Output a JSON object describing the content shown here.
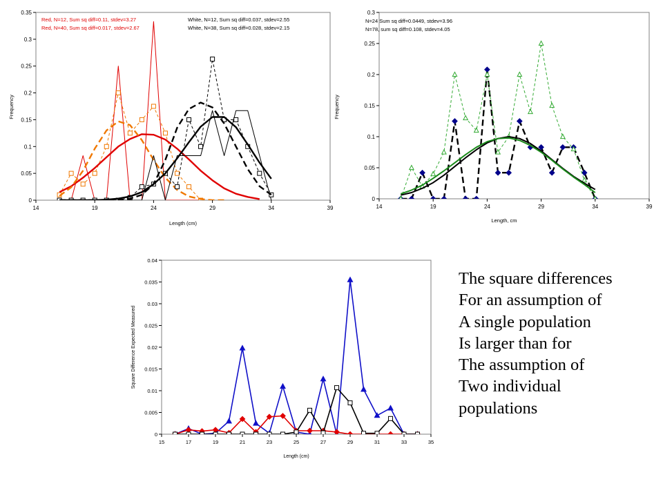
{
  "colors": {
    "red": "#e00000",
    "orange": "#f07800",
    "green": "#1a8a1a",
    "lightgreen": "#33aa33",
    "navy": "#00008b",
    "blue": "#1010c8",
    "black": "#000000"
  },
  "side_text": [
    "The square differences",
    "For an assumption of",
    "A single population",
    "Is larger than for",
    "The assumption of",
    "Two individual",
    "populations"
  ],
  "chart_data": [
    {
      "type": "line",
      "ylabel": "Frequency",
      "xlabel": "Length (cm)",
      "xlim": [
        14,
        39
      ],
      "ylim": [
        0,
        0.35
      ],
      "xticks": [
        14,
        19,
        24,
        29,
        34,
        39
      ],
      "yticks": [
        0,
        0.05,
        0.1,
        0.15,
        0.2,
        0.25,
        0.3,
        0.35
      ],
      "legend": [
        {
          "text": "Red, N=12, Sum sq diff=0.11, stdev=3.27",
          "color": "#e00000"
        },
        {
          "text": "Red, N=40, Sum sq diff=0.017, stdev=2.67",
          "color": "#e00000"
        },
        {
          "text": "White, N=12, Sum sq diff=0.037, stdev=2.55",
          "color": "#000000"
        },
        {
          "text": "White, N=38, Sum sq diff=0.028, stdev=2.15",
          "color": "#000000"
        }
      ],
      "series": [
        {
          "color": "#e00000",
          "width": 1,
          "x": [
            16,
            17,
            18,
            19,
            20,
            21,
            22,
            23,
            24,
            25,
            26,
            27,
            28
          ],
          "y": [
            0,
            0,
            0.083,
            0,
            0,
            0.25,
            0,
            0,
            0.333,
            0,
            0,
            0,
            0
          ]
        },
        {
          "color": "#f07800",
          "width": 1,
          "dash": "4,3",
          "marker": "square",
          "x": [
            16,
            17,
            18,
            19,
            20,
            21,
            22,
            23,
            24,
            25,
            26,
            27,
            28
          ],
          "y": [
            0.01,
            0.05,
            0.03,
            0.05,
            0.1,
            0.2,
            0.125,
            0.15,
            0.175,
            0.125,
            0.05,
            0.025,
            0
          ]
        },
        {
          "color": "#e00000",
          "width": 2.4,
          "x": [
            16,
            17,
            18,
            19,
            20,
            21,
            22,
            23,
            24,
            25,
            26,
            27,
            28,
            29,
            30,
            31,
            32,
            33
          ],
          "y": [
            0.015,
            0.026,
            0.042,
            0.06,
            0.08,
            0.1,
            0.114,
            0.123,
            0.122,
            0.113,
            0.096,
            0.076,
            0.055,
            0.037,
            0.022,
            0.012,
            0.006,
            0.002
          ]
        },
        {
          "color": "#f07800",
          "width": 2.4,
          "dash": "9,5",
          "x": [
            16,
            17,
            18,
            19,
            20,
            21,
            22,
            23,
            24,
            25,
            26,
            27,
            28,
            29,
            30
          ],
          "y": [
            0.008,
            0.024,
            0.055,
            0.096,
            0.13,
            0.147,
            0.14,
            0.112,
            0.075,
            0.042,
            0.019,
            0.007,
            0.002,
            0,
            0
          ]
        },
        {
          "color": "#000000",
          "width": 1,
          "x": [
            16,
            17,
            18,
            19,
            20,
            21,
            22,
            23,
            24,
            25,
            26,
            27,
            28,
            29,
            30,
            31,
            32,
            33,
            34
          ],
          "y": [
            0,
            0,
            0,
            0,
            0,
            0,
            0,
            0,
            0.083,
            0,
            0.083,
            0.083,
            0.083,
            0.167,
            0.083,
            0.167,
            0.167,
            0.083,
            0
          ]
        },
        {
          "color": "#000000",
          "width": 1,
          "dash": "4,3",
          "marker": "square",
          "x": [
            16,
            17,
            18,
            19,
            20,
            21,
            22,
            23,
            24,
            25,
            26,
            27,
            28,
            29,
            30,
            31,
            32,
            33,
            34
          ],
          "y": [
            0,
            0,
            0,
            0,
            0,
            0,
            0.005,
            0.025,
            0.03,
            0.05,
            0.025,
            0.15,
            0.1,
            0.263,
            0.15,
            0.15,
            0.1,
            0.05,
            0.01
          ]
        },
        {
          "color": "#000000",
          "width": 2.4,
          "x": [
            16,
            17,
            18,
            19,
            20,
            21,
            22,
            23,
            24,
            25,
            26,
            27,
            28,
            29,
            30,
            31,
            32,
            33,
            34
          ],
          "y": [
            0,
            0,
            0,
            0,
            0.001,
            0.003,
            0.007,
            0.015,
            0.03,
            0.05,
            0.078,
            0.108,
            0.137,
            0.155,
            0.155,
            0.136,
            0.104,
            0.07,
            0.04
          ]
        },
        {
          "color": "#000000",
          "width": 2.4,
          "dash": "9,5",
          "x": [
            16,
            17,
            18,
            19,
            20,
            21,
            22,
            23,
            24,
            25,
            26,
            27,
            28,
            29,
            30,
            31,
            32,
            33,
            34
          ],
          "y": [
            0,
            0,
            0,
            0,
            0,
            0,
            0.003,
            0.01,
            0.03,
            0.075,
            0.135,
            0.17,
            0.182,
            0.173,
            0.143,
            0.1,
            0.058,
            0.026,
            0.01
          ]
        }
      ]
    },
    {
      "type": "line",
      "ylabel": "Frequency",
      "xlabel": "Length, cm",
      "xlim": [
        14,
        39
      ],
      "ylim": [
        0,
        0.3
      ],
      "xticks": [
        14,
        19,
        24,
        29,
        34,
        39
      ],
      "yticks": [
        0,
        0.05,
        0.1,
        0.15,
        0.2,
        0.25,
        0.3
      ],
      "legend": [
        {
          "text": "N=24 Sum sq diff=0.0449, stdev=3.96",
          "color": "#000000"
        },
        {
          "text": "N=78, sum sq diff=0.108, stdev=4.05",
          "color": "#000000"
        }
      ],
      "series": [
        {
          "color": "#000000",
          "width": 2.4,
          "dash": "9,5",
          "marker": "diamond",
          "markerColor": "#00008b",
          "x": [
            16,
            17,
            18,
            19,
            20,
            21,
            22,
            23,
            24,
            25,
            26,
            27,
            28,
            29,
            30,
            31,
            32,
            33,
            34
          ],
          "y": [
            0,
            0,
            0.042,
            0,
            0,
            0.125,
            0,
            0,
            0.208,
            0.042,
            0.042,
            0.125,
            0.083,
            0.083,
            0.042,
            0.083,
            0.083,
            0.042,
            0
          ]
        },
        {
          "color": "#33aa33",
          "width": 1,
          "dash": "4,3",
          "marker": "triangle-open",
          "x": [
            16,
            17,
            18,
            19,
            20,
            21,
            22,
            23,
            24,
            25,
            26,
            27,
            28,
            29,
            30,
            31,
            32,
            33,
            34
          ],
          "y": [
            0,
            0.05,
            0.02,
            0.04,
            0.075,
            0.2,
            0.13,
            0.11,
            0.2,
            0.075,
            0.1,
            0.2,
            0.14,
            0.25,
            0.15,
            0.1,
            0.08,
            0.03,
            0
          ]
        },
        {
          "color": "#000000",
          "width": 2,
          "x": [
            16,
            17,
            18,
            19,
            20,
            21,
            22,
            23,
            24,
            25,
            26,
            27,
            28,
            29,
            30,
            31,
            32,
            33,
            34
          ],
          "y": [
            0.006,
            0.01,
            0.017,
            0.026,
            0.038,
            0.052,
            0.066,
            0.079,
            0.09,
            0.097,
            0.1,
            0.097,
            0.089,
            0.077,
            0.063,
            0.049,
            0.036,
            0.025,
            0.015
          ]
        },
        {
          "color": "#1a8a1a",
          "width": 2,
          "x": [
            16,
            17,
            18,
            19,
            20,
            21,
            22,
            23,
            24,
            25,
            26,
            27,
            28,
            29,
            30,
            31,
            32,
            33,
            34
          ],
          "y": [
            0.008,
            0.014,
            0.022,
            0.033,
            0.045,
            0.058,
            0.071,
            0.083,
            0.092,
            0.097,
            0.098,
            0.094,
            0.086,
            0.075,
            0.062,
            0.048,
            0.035,
            0.023,
            0.01
          ]
        }
      ]
    },
    {
      "type": "line",
      "ylabel": "Square Difference Expected Measured",
      "xlabel": "Length (cm)",
      "xlim": [
        15,
        35
      ],
      "ylim": [
        0,
        0.04
      ],
      "xticks": [
        15,
        17,
        19,
        21,
        23,
        25,
        27,
        29,
        31,
        33,
        35
      ],
      "yticks": [
        0,
        0.005,
        0.01,
        0.015,
        0.02,
        0.025,
        0.03,
        0.035,
        0.04
      ],
      "series": [
        {
          "color": "#1010c8",
          "width": 1.6,
          "marker": "triangle",
          "x": [
            16,
            17,
            18,
            19,
            20,
            21,
            22,
            23,
            24,
            25,
            26,
            27,
            28,
            29,
            30,
            31,
            32,
            33,
            34
          ],
          "y": [
            0,
            0.0013,
            0,
            0.0002,
            0.003,
            0.0198,
            0.0025,
            0.0002,
            0.011,
            0.0005,
            0,
            0.0127,
            0,
            0.0355,
            0.0103,
            0.0043,
            0.006,
            0,
            0
          ]
        },
        {
          "color": "#e00000",
          "width": 1.6,
          "marker": "diamond",
          "x": [
            16,
            17,
            18,
            19,
            20,
            21,
            22,
            23,
            24,
            25,
            26,
            27,
            28,
            29,
            30,
            31,
            32,
            33,
            34
          ],
          "y": [
            0,
            0.001,
            0.0007,
            0.001,
            0.0003,
            0.0035,
            0.0005,
            0.004,
            0.0042,
            0.0008,
            0.0008,
            0.0008,
            0.0005,
            0,
            0,
            0,
            0,
            0,
            0
          ]
        },
        {
          "color": "#000000",
          "width": 1.6,
          "marker": "square",
          "x": [
            16,
            17,
            18,
            19,
            20,
            21,
            22,
            23,
            24,
            25,
            26,
            27,
            28,
            29,
            30,
            31,
            32,
            33,
            34
          ],
          "y": [
            0,
            0,
            0,
            0,
            0,
            0,
            0,
            0,
            0,
            0.0005,
            0.0055,
            0.0003,
            0.0107,
            0.0072,
            0.0002,
            0.0002,
            0.0036,
            0,
            0
          ]
        }
      ]
    }
  ]
}
